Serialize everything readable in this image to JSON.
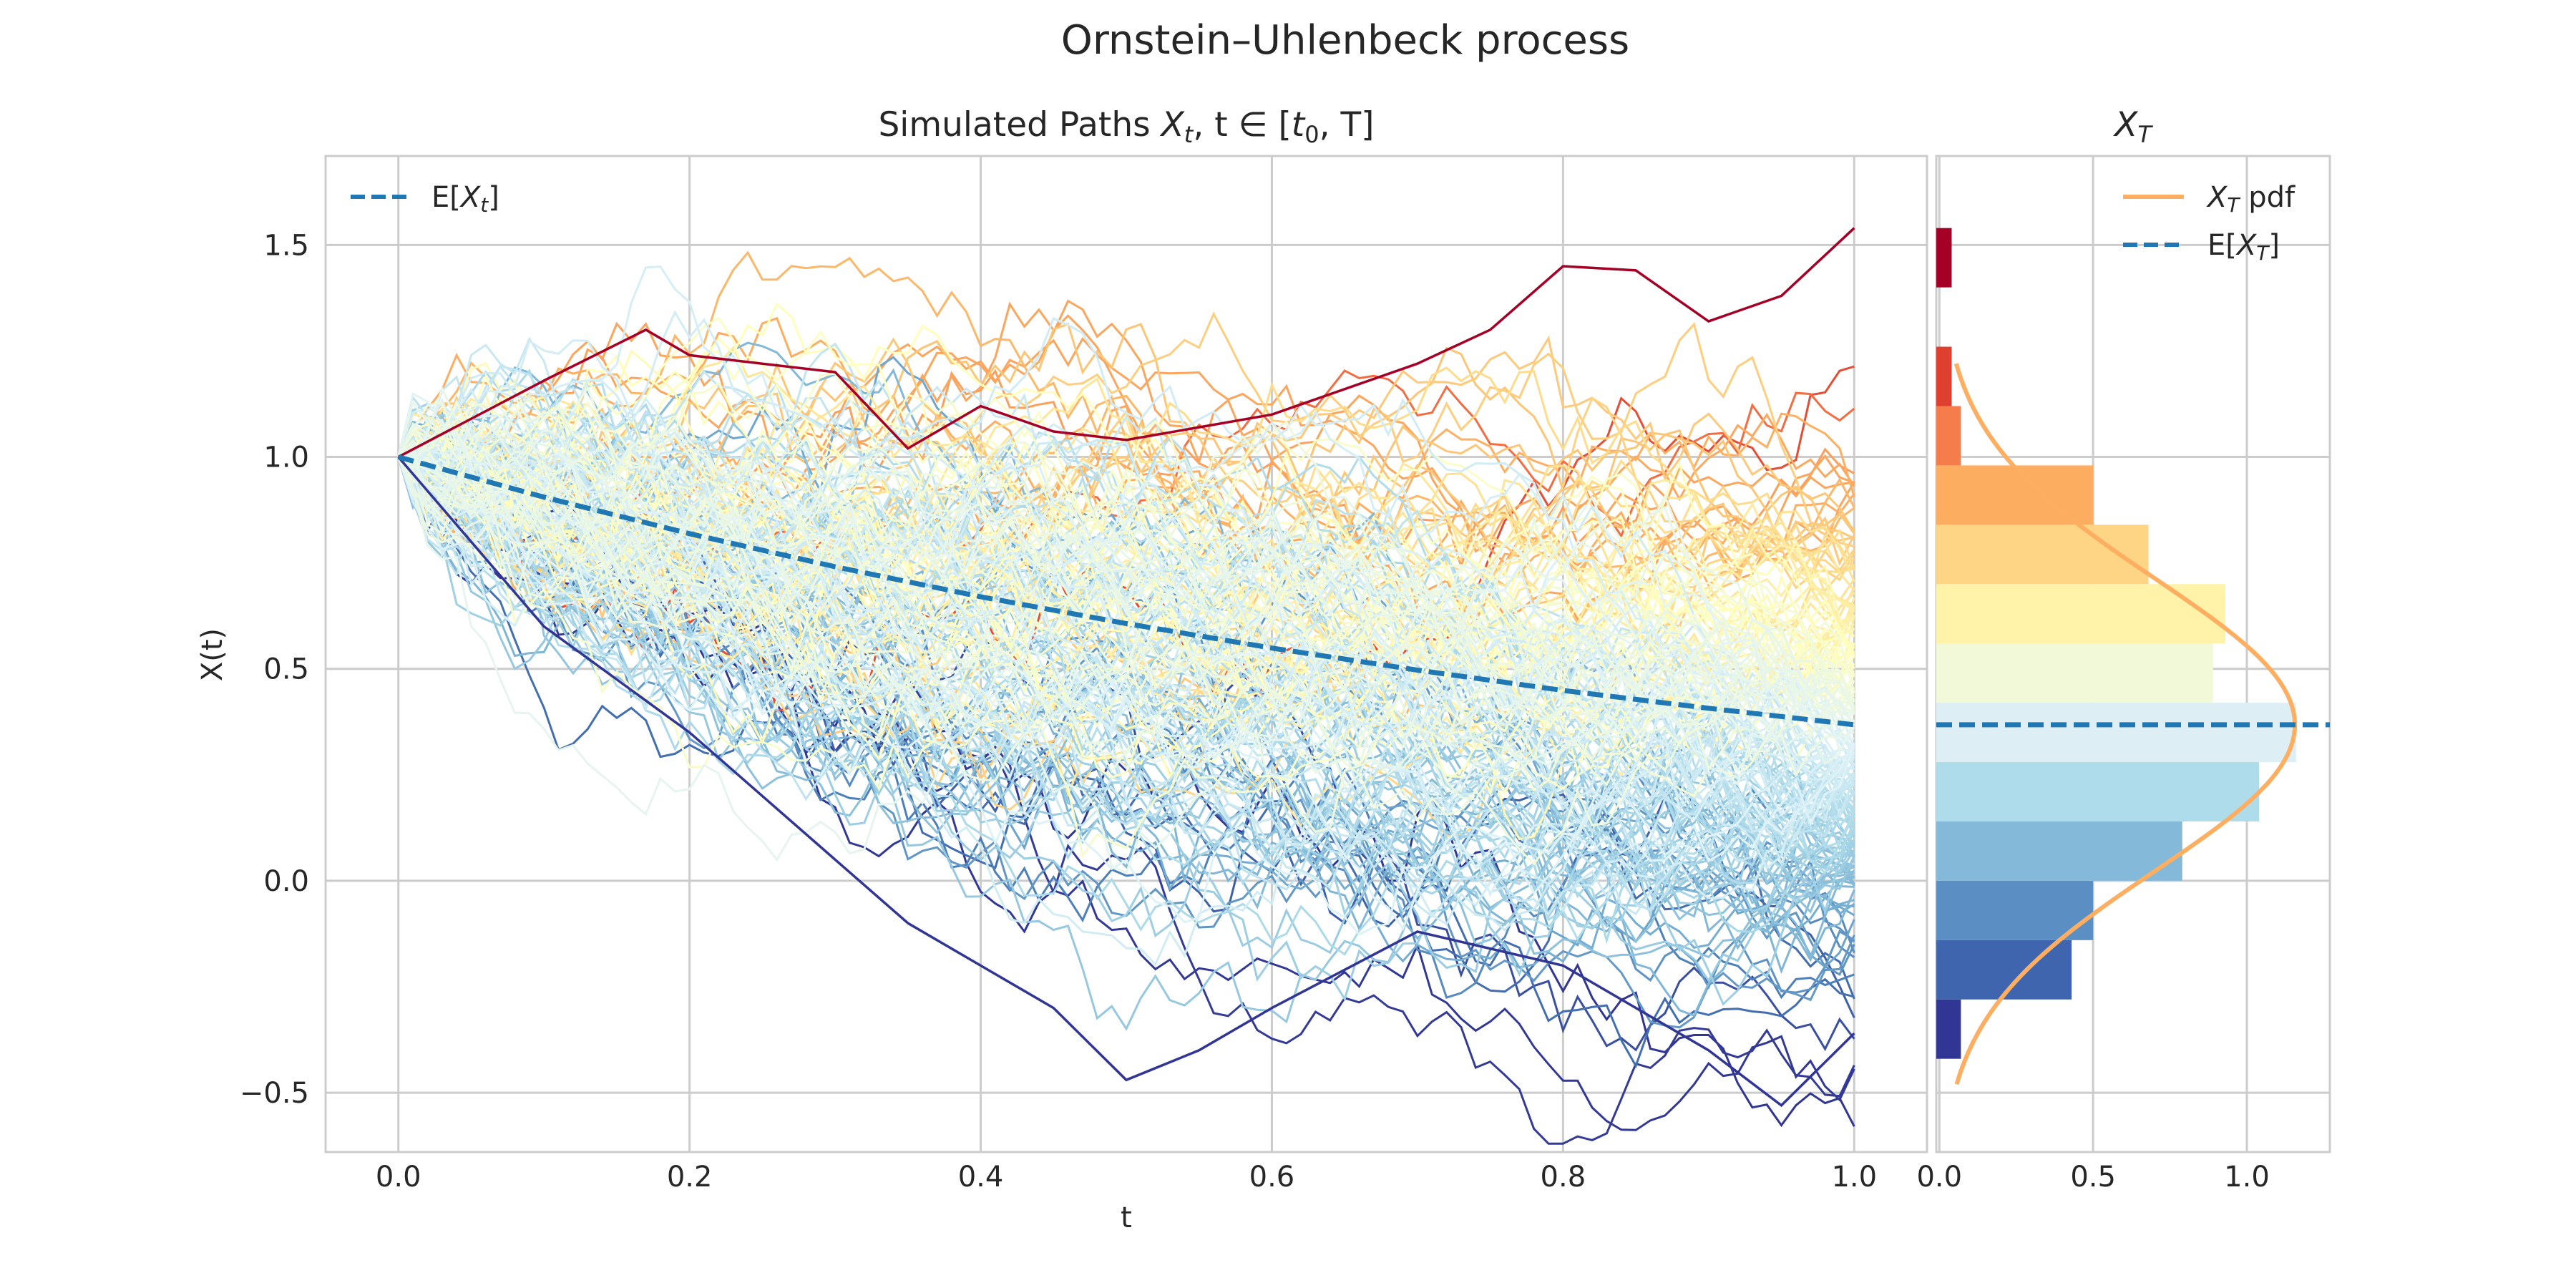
{
  "chart_data": [
    {
      "panel": "paths",
      "type": "line",
      "suptitle": "Ornstein–Uhlenbeck process",
      "title": "Simulated Paths X_t, t ∈ [t_0, T]",
      "title_parts": {
        "pre": "Simulated Paths ",
        "sym": "X",
        "sub1": "t",
        "mid": ", t ∈ [",
        "sym2": "t",
        "sub2": "0",
        "post": ", T]"
      },
      "xlabel": "t",
      "ylabel": "X(t)",
      "xlim": [
        -0.05,
        1.05
      ],
      "ylim": [
        -0.64,
        1.71
      ],
      "xticks": [
        0.0,
        0.2,
        0.4,
        0.6,
        0.8,
        1.0
      ],
      "xtick_labels": [
        "0.0",
        "0.2",
        "0.4",
        "0.6",
        "0.8",
        "1.0"
      ],
      "yticks": [
        -0.5,
        0.0,
        0.5,
        1.0,
        1.5
      ],
      "ytick_labels": [
        "−0.5",
        "0.0",
        "0.5",
        "1.0",
        "1.5"
      ],
      "grid": true,
      "legend_placement": "top-left",
      "legend": [
        {
          "label_parts": {
            "pre": "E[",
            "sym": "X",
            "sub": "t",
            "post": "]"
          },
          "style": "dashed",
          "color": "#1f77b4"
        }
      ],
      "x0": 1.0,
      "n_paths": 200,
      "n_steps": 100,
      "mean_line": {
        "t": [
          0.0,
          0.1,
          0.2,
          0.3,
          0.4,
          0.5,
          0.6,
          0.7,
          0.8,
          0.9,
          1.0
        ],
        "values": [
          1.0,
          0.905,
          0.819,
          0.741,
          0.67,
          0.607,
          0.549,
          0.497,
          0.449,
          0.407,
          0.368
        ],
        "color": "#1f77b4"
      },
      "highlighted_paths": [
        {
          "color": "#a50026",
          "t": [
            0.0,
            0.1,
            0.17,
            0.2,
            0.3,
            0.35,
            0.4,
            0.45,
            0.5,
            0.6,
            0.7,
            0.75,
            0.8,
            0.85,
            0.9,
            0.95,
            1.0
          ],
          "values": [
            1.0,
            1.18,
            1.3,
            1.24,
            1.2,
            1.02,
            1.12,
            1.06,
            1.04,
            1.1,
            1.22,
            1.3,
            1.45,
            1.44,
            1.32,
            1.38,
            1.54
          ]
        },
        {
          "color": "#313695",
          "t": [
            0.0,
            0.1,
            0.2,
            0.3,
            0.35,
            0.4,
            0.45,
            0.5,
            0.55,
            0.6,
            0.7,
            0.8,
            0.9,
            0.95,
            1.0
          ],
          "values": [
            1.0,
            0.6,
            0.35,
            0.05,
            -0.1,
            -0.2,
            -0.3,
            -0.47,
            -0.4,
            -0.3,
            -0.12,
            -0.2,
            -0.4,
            -0.53,
            -0.36
          ]
        }
      ]
    },
    {
      "panel": "terminal-distribution",
      "type": "bar",
      "orientation": "horizontal",
      "title": "X_T",
      "title_parts": {
        "sym": "X",
        "sub": "T"
      },
      "xlim": [
        -0.01,
        1.27
      ],
      "xticks": [
        0.0,
        0.5,
        1.0
      ],
      "xtick_labels": [
        "0.0",
        "0.5",
        "1.0"
      ],
      "grid": true,
      "legend_placement": "top-right",
      "legend": [
        {
          "label_parts": {
            "pre": "",
            "sym": "X",
            "sub": "T",
            "post": " pdf"
          },
          "style": "solid",
          "color": "#fdae61"
        },
        {
          "label_parts": {
            "pre": "E[",
            "sym": "X",
            "sub": "T",
            "post": "]"
          },
          "style": "dashed",
          "color": "#1f77b4"
        }
      ],
      "bins": [
        {
          "from": -0.42,
          "to": -0.28,
          "density": 0.07,
          "color": "#313695"
        },
        {
          "from": -0.28,
          "to": -0.14,
          "density": 0.43,
          "color": "#4065af"
        },
        {
          "from": -0.14,
          "to": 0.0,
          "density": 0.5,
          "color": "#5b8fc4"
        },
        {
          "from": 0.0,
          "to": 0.14,
          "density": 0.79,
          "color": "#85b9d9"
        },
        {
          "from": 0.14,
          "to": 0.28,
          "density": 1.04,
          "color": "#afdceb"
        },
        {
          "from": 0.28,
          "to": 0.42,
          "density": 1.16,
          "color": "#ddeff5"
        },
        {
          "from": 0.42,
          "to": 0.56,
          "density": 0.89,
          "color": "#f2f9d8"
        },
        {
          "from": 0.56,
          "to": 0.7,
          "density": 0.93,
          "color": "#fff2a9"
        },
        {
          "from": 0.7,
          "to": 0.84,
          "density": 0.68,
          "color": "#fed584"
        },
        {
          "from": 0.84,
          "to": 0.98,
          "density": 0.5,
          "color": "#fdad60"
        },
        {
          "from": 0.98,
          "to": 1.12,
          "density": 0.07,
          "color": "#f57c4b"
        },
        {
          "from": 1.12,
          "to": 1.26,
          "density": 0.04,
          "color": "#de3f2e"
        },
        {
          "from": 1.4,
          "to": 1.54,
          "density": 0.04,
          "color": "#a50026"
        }
      ],
      "pdf": {
        "mean": 0.368,
        "std": 0.345,
        "y_range": [
          -0.48,
          1.22
        ],
        "color": "#fdae61"
      },
      "mean_line": {
        "value": 0.368,
        "color": "#1f77b4"
      }
    }
  ]
}
